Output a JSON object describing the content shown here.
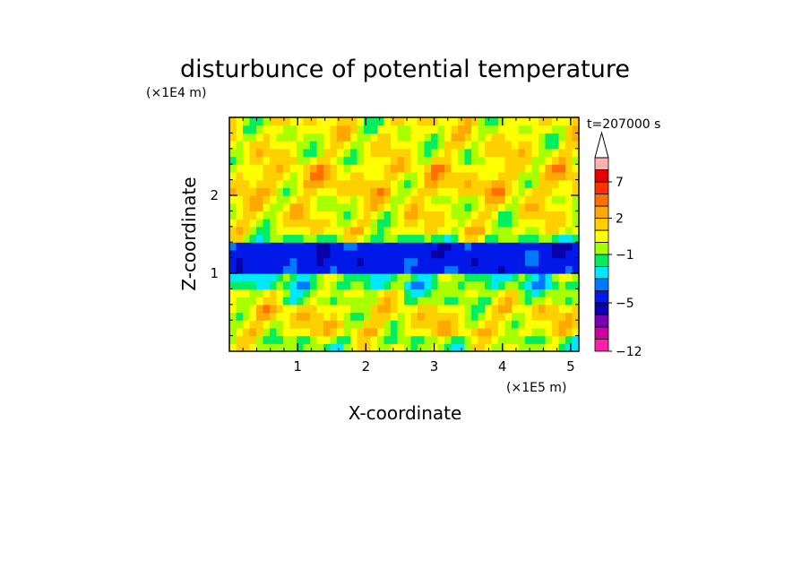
{
  "chart_data": {
    "type": "heatmap",
    "title": "disturbunce of potential temperature",
    "time_label": "t=207000 s",
    "xlabel": "X-coordinate",
    "ylabel": "Z-coordinate",
    "x_unit": "(×1E5 m)",
    "y_unit": "(×1E4 m)",
    "xlim": [
      0,
      5.12
    ],
    "ylim": [
      0,
      3.0
    ],
    "x_ticks": [
      1,
      2,
      3,
      4,
      5
    ],
    "y_ticks": [
      1,
      2
    ],
    "x_tick_labels": [
      "1",
      "2",
      "3",
      "4",
      "5"
    ],
    "y_tick_labels": [
      "1",
      "2"
    ],
    "colorbar": {
      "levels": [
        -12,
        -11,
        -9,
        -7,
        -5,
        -4,
        -3,
        -2,
        -1,
        0,
        1,
        2,
        3,
        5,
        7,
        9,
        11
      ],
      "tick_values": [
        -12,
        -5,
        -1,
        2,
        7
      ],
      "tick_labels": [
        "−12",
        "−5",
        "−1",
        "2",
        "7"
      ],
      "colors": [
        "#ff1fa8",
        "#cc00a0",
        "#7a00b0",
        "#0a00a8",
        "#0018e8",
        "#0078ff",
        "#00e8ff",
        "#00ee60",
        "#a8ff00",
        "#ffff00",
        "#ffd000",
        "#ffa800",
        "#ff7000",
        "#ff3000",
        "#e80000",
        "#ffb0b0"
      ],
      "extend": "max"
    },
    "bands": [
      {
        "z": [
          2.45,
          3.0
        ],
        "value": 0.5
      },
      {
        "z": [
          2.0,
          2.45
        ],
        "value": 1.2
      },
      {
        "z": [
          1.5,
          2.0
        ],
        "value": 0.6
      },
      {
        "z": [
          1.4,
          1.5
        ],
        "value": -0.8
      },
      {
        "z": [
          1.05,
          1.4
        ],
        "value": -4.5
      },
      {
        "z": [
          0.8,
          1.05
        ],
        "value": -1.5
      },
      {
        "z": [
          0.6,
          0.8
        ],
        "value": -0.3
      },
      {
        "z": [
          0.2,
          0.6
        ],
        "value": 0.8
      },
      {
        "z": [
          0.0,
          0.2
        ],
        "value": -0.4
      }
    ]
  }
}
